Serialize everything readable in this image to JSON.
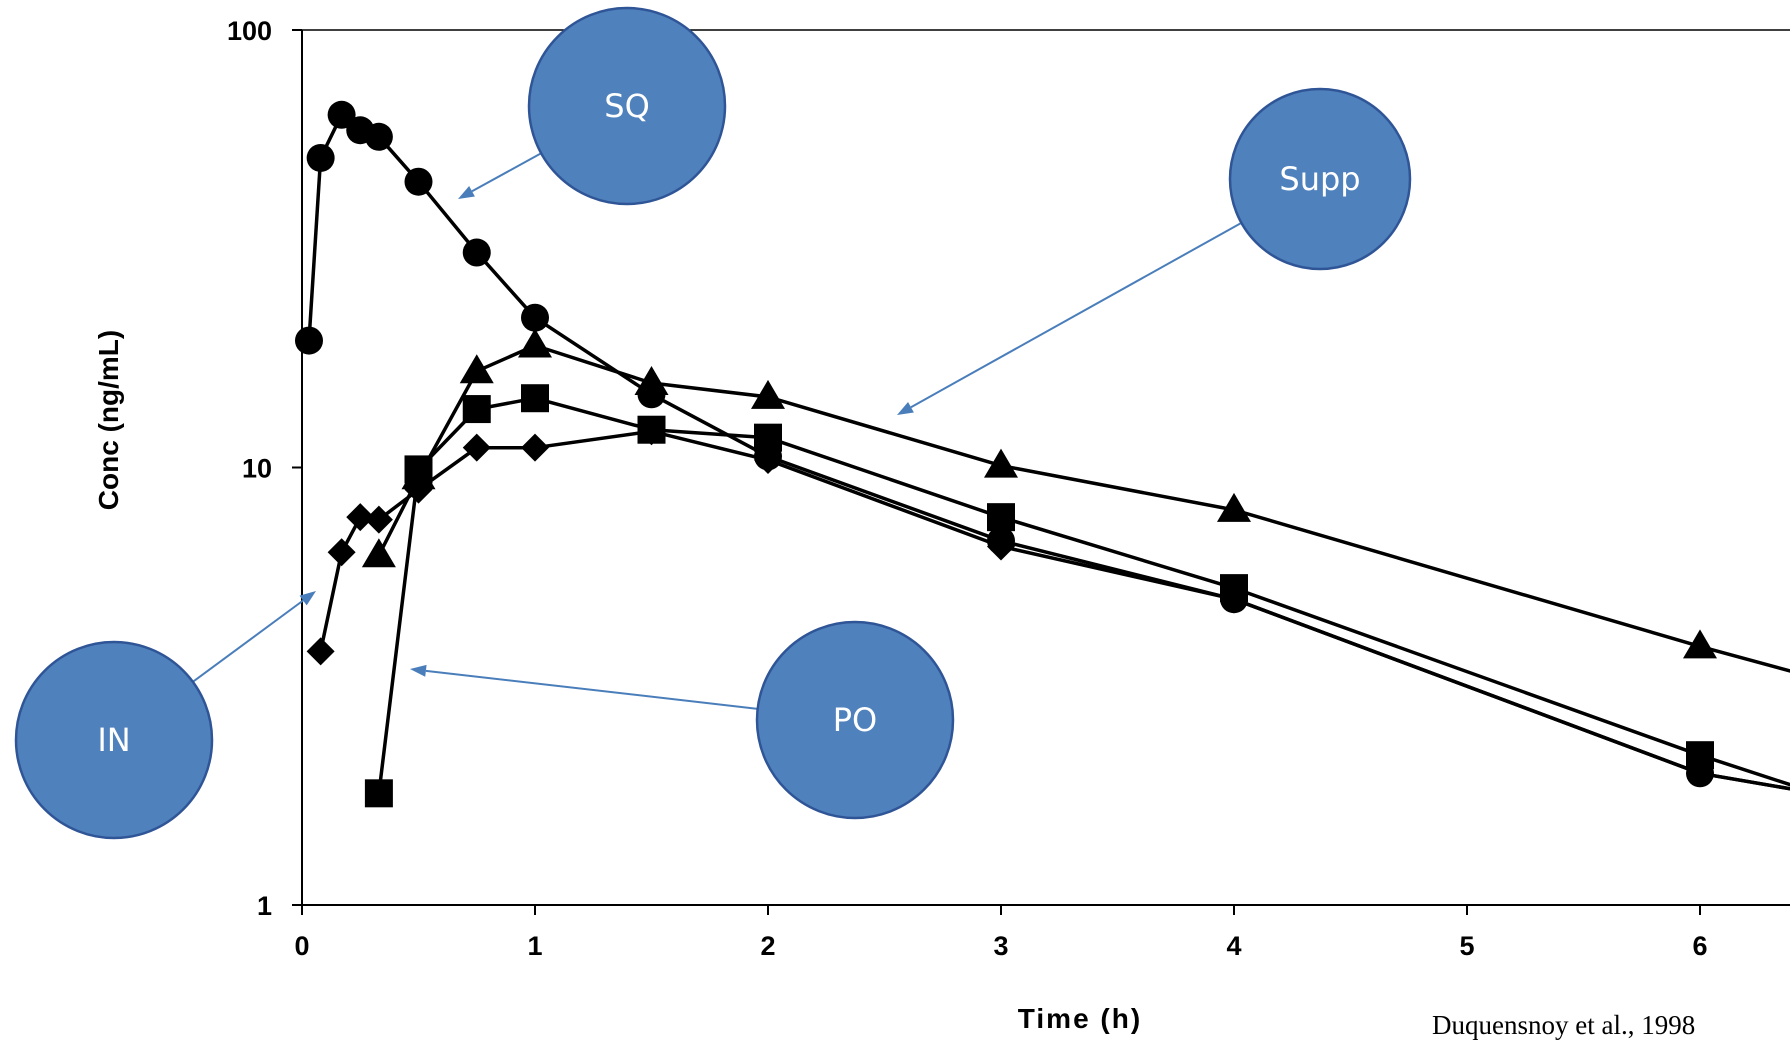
{
  "chart_data": {
    "type": "line",
    "title": "",
    "xlabel": "Time (h)",
    "ylabel": "Conc (ng/mL)",
    "yscale": "log",
    "xlim": [
      0,
      6.4
    ],
    "ylim": [
      1,
      100
    ],
    "x_ticks": [
      "0",
      "1",
      "2",
      "3",
      "4",
      "5",
      "6"
    ],
    "y_ticks": [
      "1",
      "10",
      "100"
    ],
    "grid": false,
    "series": [
      {
        "marker": "circle",
        "points": [
          [
            0.03,
            19.5
          ],
          [
            0.08,
            51
          ],
          [
            0.17,
            64
          ],
          [
            0.25,
            59
          ],
          [
            0.33,
            57
          ],
          [
            0.5,
            45
          ],
          [
            0.75,
            31
          ],
          [
            1.0,
            22
          ],
          [
            1.5,
            14.7
          ],
          [
            2.0,
            10.6
          ],
          [
            3.0,
            6.8
          ],
          [
            4.0,
            5.0
          ],
          [
            6.0,
            2.0
          ],
          [
            6.5,
            1.8
          ]
        ]
      },
      {
        "marker": "triangle",
        "points": [
          [
            0.33,
            6.3
          ],
          [
            0.5,
            9.5
          ],
          [
            0.75,
            16.6
          ],
          [
            1.0,
            19.0
          ],
          [
            1.5,
            15.6
          ],
          [
            2.0,
            14.5
          ],
          [
            3.0,
            10.1
          ],
          [
            4.0,
            8.0
          ],
          [
            6.0,
            3.9
          ],
          [
            6.5,
            3.3
          ]
        ]
      },
      {
        "marker": "square",
        "points": [
          [
            0.33,
            1.8
          ],
          [
            0.5,
            9.9
          ],
          [
            0.75,
            13.6
          ],
          [
            1.0,
            14.4
          ],
          [
            1.5,
            12.2
          ],
          [
            2.0,
            11.7
          ],
          [
            3.0,
            7.7
          ],
          [
            4.0,
            5.3
          ],
          [
            6.0,
            2.2
          ],
          [
            6.5,
            1.8
          ]
        ]
      },
      {
        "marker": "diamond",
        "points": [
          [
            0.08,
            3.8
          ],
          [
            0.17,
            6.4
          ],
          [
            0.25,
            7.7
          ],
          [
            0.33,
            7.6
          ],
          [
            0.5,
            8.9
          ],
          [
            0.75,
            11.1
          ],
          [
            1.0,
            11.1
          ],
          [
            1.5,
            12.1
          ],
          [
            2.0,
            10.4
          ],
          [
            3.0,
            6.6
          ],
          [
            4.0,
            5.0
          ],
          [
            6.0,
            2.0
          ],
          [
            6.5,
            1.8
          ]
        ]
      }
    ],
    "annotations": [
      {
        "label": "SQ",
        "fill": "#4f81bd"
      },
      {
        "label": "Supp",
        "fill": "#4f81bd"
      },
      {
        "label": "IN",
        "fill": "#4f81bd"
      },
      {
        "label": "PO",
        "fill": "#4f81bd"
      }
    ],
    "source_note": "Duquensnoy et al., 1998"
  }
}
